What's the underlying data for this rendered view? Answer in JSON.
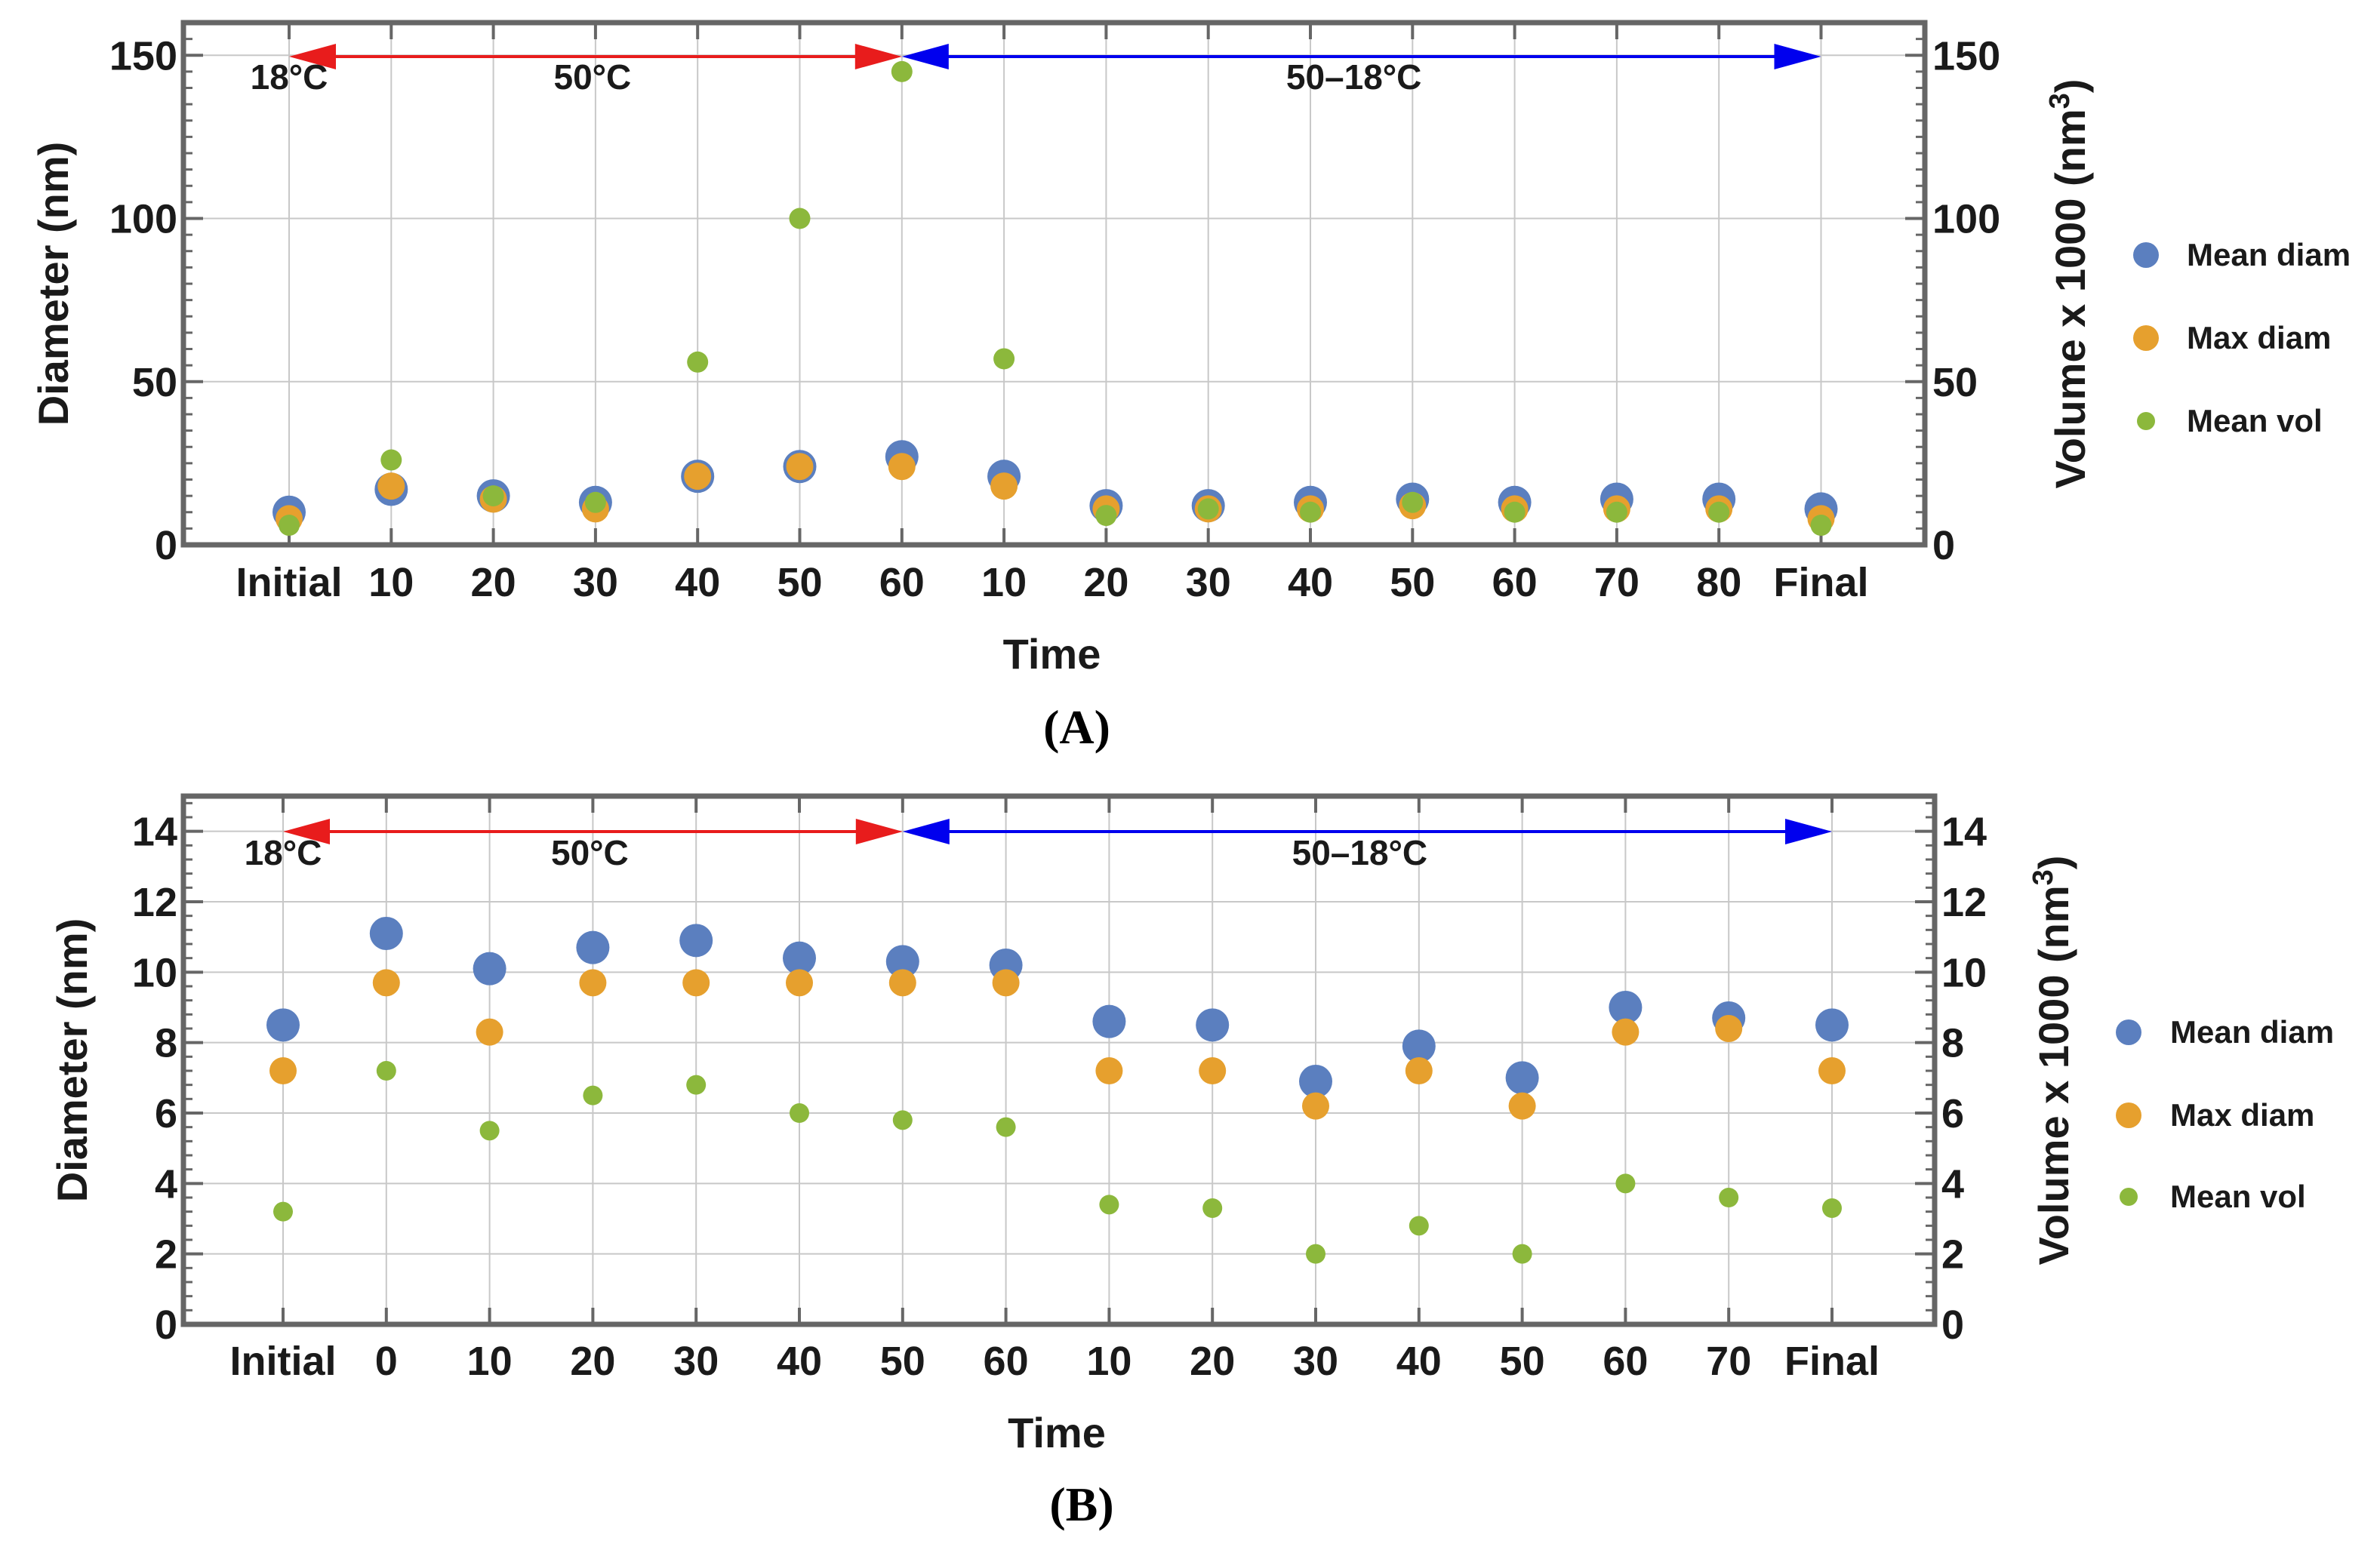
{
  "chart_data": [
    {
      "id": "A",
      "type": "scatter",
      "panel_label": "(A)",
      "categories": [
        "Initial",
        "10",
        "20",
        "30",
        "40",
        "50",
        "60",
        "10",
        "20",
        "30",
        "40",
        "50",
        "60",
        "70",
        "80",
        "Final"
      ],
      "xlabel": "Time",
      "ylabel": "Diameter (nm)",
      "ylabel_right": "Volume x 1000 (nm³)",
      "ylim": [
        0,
        160
      ],
      "yticks": [
        0,
        50,
        100,
        150
      ],
      "grid": true,
      "legend_position": "right",
      "series": [
        {
          "name": "Mean diam",
          "color": "#5b7fbf",
          "axis": "left",
          "values": [
            10,
            17,
            15,
            13,
            21,
            24,
            27,
            21,
            12,
            12,
            13,
            14,
            13,
            14,
            14,
            11
          ]
        },
        {
          "name": "Max diam",
          "color": "#e6a02e",
          "axis": "left",
          "values": [
            8,
            18,
            14,
            11,
            21,
            24,
            24,
            18,
            11,
            11,
            11,
            12,
            11,
            11,
            11,
            8
          ]
        },
        {
          "name": "Mean vol",
          "color": "#8cb83c",
          "axis": "right",
          "values": [
            6,
            26,
            15,
            13,
            56,
            100,
            145,
            57,
            9,
            11,
            10,
            13,
            10,
            10,
            10,
            6
          ]
        }
      ],
      "annotations": [
        {
          "text": "18°C",
          "category": "Initial"
        },
        {
          "text": "50°C",
          "from_index": 0,
          "to_index": 6,
          "color": "#e81c1c"
        },
        {
          "text": "50–18°C",
          "from_index": 6,
          "to_index": 15,
          "color": "#0000ee"
        }
      ]
    },
    {
      "id": "B",
      "type": "scatter",
      "panel_label": "(B)",
      "categories": [
        "Initial",
        "0",
        "10",
        "20",
        "30",
        "40",
        "50",
        "60",
        "10",
        "20",
        "30",
        "40",
        "50",
        "60",
        "70",
        "Final"
      ],
      "xlabel": "Time",
      "ylabel": "Diameter (nm)",
      "ylabel_right": "Volume x 1000 (nm³)",
      "ylim": [
        0,
        15
      ],
      "yticks": [
        0,
        2,
        4,
        6,
        8,
        10,
        12,
        14
      ],
      "grid": true,
      "legend_position": "right",
      "series": [
        {
          "name": "Mean diam",
          "color": "#5b7fbf",
          "axis": "left",
          "values": [
            8.5,
            11.1,
            10.1,
            10.7,
            10.9,
            10.4,
            10.3,
            10.2,
            8.6,
            8.5,
            6.9,
            7.9,
            7.0,
            9.0,
            8.7,
            8.5
          ]
        },
        {
          "name": "Max diam",
          "color": "#e6a02e",
          "axis": "left",
          "values": [
            7.2,
            9.7,
            8.3,
            9.7,
            9.7,
            9.7,
            9.7,
            9.7,
            7.2,
            7.2,
            6.2,
            7.2,
            6.2,
            8.3,
            8.4,
            7.2
          ]
        },
        {
          "name": "Mean vol",
          "color": "#8cb83c",
          "axis": "right",
          "values": [
            3.2,
            7.2,
            5.5,
            6.5,
            6.8,
            6.0,
            5.8,
            5.6,
            3.4,
            3.3,
            2.0,
            2.8,
            2.0,
            4.0,
            3.6,
            3.3
          ]
        }
      ],
      "annotations": [
        {
          "text": "18°C",
          "category": "Initial"
        },
        {
          "text": "50°C",
          "from_index": 0,
          "to_index": 6,
          "color": "#e81c1c"
        },
        {
          "text": "50–18°C",
          "from_index": 6,
          "to_index": 15,
          "color": "#0000ee"
        }
      ]
    }
  ]
}
